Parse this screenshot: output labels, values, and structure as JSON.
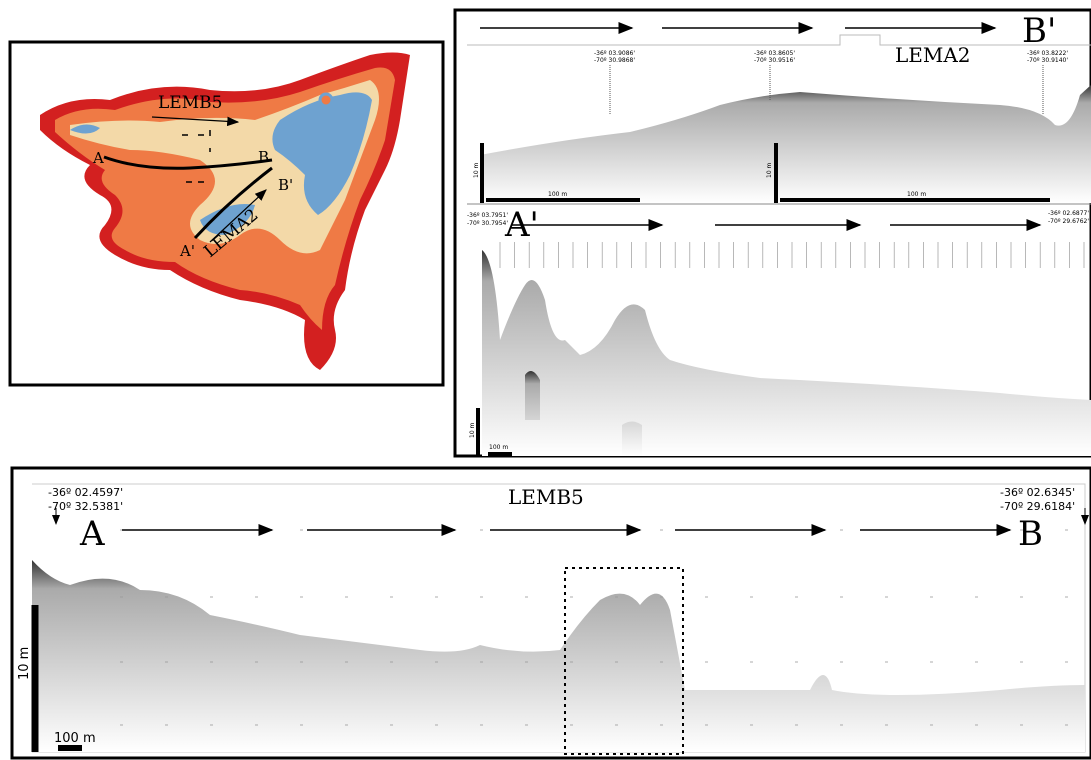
{
  "map": {
    "lemb5": "LEMB5",
    "lema2": "LEMA2",
    "a": "A",
    "b": "B",
    "a_prime": "A'",
    "b_prime": "B'"
  },
  "lema2_panel": {
    "title": "LEMA2",
    "end": "B'",
    "markers": [
      {
        "lat": "-36º 03.9086'",
        "lon": "-70º 30.9868'"
      },
      {
        "lat": "-36º 03.8605'",
        "lon": "-70º 30.9516'"
      },
      {
        "lat": "-36º 03.8222'",
        "lon": "-70º 30.9140'"
      }
    ],
    "scales": [
      {
        "vertical": "10 m",
        "horizontal": "100 m"
      },
      {
        "vertical": "10 m",
        "horizontal": "100 m"
      }
    ]
  },
  "lema2_lower": {
    "start": "A'",
    "start_lat": "-36º 03.7951'",
    "start_lon": "-70º 30.7954'",
    "end_lat": "-36º 02.6877'",
    "end_lon": "-70º 29.6762'",
    "vertical_scale": "10 m",
    "horizontal_scale": "100 m"
  },
  "lemb5_panel": {
    "title": "LEMB5",
    "start": "A",
    "end": "B",
    "start_lat": "-36º 02.4597'",
    "start_lon": "-70º 32.5381'",
    "end_lat": "-36º 02.6345'",
    "end_lon": "-70º 29.6184'",
    "vertical_scale": "10 m",
    "horizontal_scale": "100 m"
  }
}
